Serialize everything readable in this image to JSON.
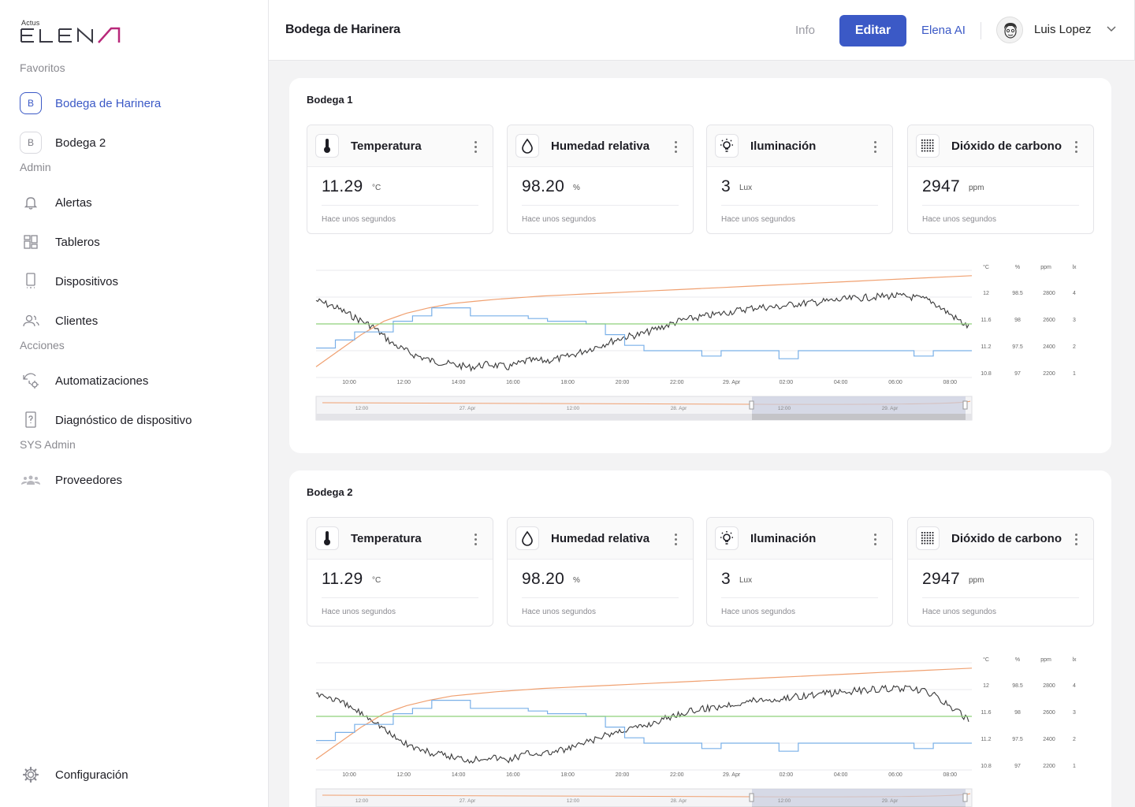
{
  "app": {
    "logo_small": "Actus",
    "logo_text": "ELENA"
  },
  "sidebar": {
    "sections": [
      {
        "label": "Favoritos",
        "items": [
          {
            "label": "Bodega de Harinera",
            "badge": "B",
            "icon": "badge-b"
          },
          {
            "label": "Bodega 2",
            "badge": "B",
            "icon": "badge-b"
          }
        ]
      },
      {
        "label": "Admin",
        "items": [
          {
            "label": "Alertas",
            "icon": "bell-icon"
          },
          {
            "label": "Tableros",
            "icon": "dashboard-icon"
          },
          {
            "label": "Dispositivos",
            "icon": "device-icon"
          },
          {
            "label": "Clientes",
            "icon": "users-icon"
          }
        ]
      },
      {
        "label": "Acciones",
        "items": [
          {
            "label": "Automatizaciones",
            "icon": "automation-icon"
          },
          {
            "label": "Diagnóstico de dispositivo",
            "icon": "diagnostic-icon"
          }
        ]
      },
      {
        "label": "SYS Admin",
        "items": [
          {
            "label": "Proveedores",
            "icon": "providers-icon"
          }
        ]
      }
    ],
    "settings_label": "Configuración"
  },
  "header": {
    "title": "Bodega de Harinera",
    "info": "Info",
    "edit": "Editar",
    "ai": "Elena AI",
    "user": "Luis Lopez"
  },
  "colors": {
    "accent": "#3b59c6",
    "temp_line": "#3a3a3a",
    "humidity_line": "#f0a070",
    "light_line": "#7ab0e8",
    "co2_line": "#8fd17a"
  },
  "panels": [
    {
      "title": "Bodega 1",
      "metrics": [
        {
          "name": "Temperatura",
          "value": "11.29",
          "unit": "°C",
          "time": "Hace unos segundos",
          "icon": "thermometer-icon"
        },
        {
          "name": "Humedad relativa",
          "value": "98.20",
          "unit": "%",
          "time": "Hace unos segundos",
          "icon": "droplet-icon"
        },
        {
          "name": "Iluminación",
          "value": "3",
          "unit": "Lux",
          "time": "Hace unos segundos",
          "icon": "bulb-icon"
        },
        {
          "name": "Dióxido de carbono",
          "value": "2947",
          "unit": "ppm",
          "time": "Hace unos segundos",
          "icon": "co2-grid-icon"
        }
      ]
    },
    {
      "title": "Bodega 2",
      "metrics": [
        {
          "name": "Temperatura",
          "value": "11.29",
          "unit": "°C",
          "time": "Hace unos segundos",
          "icon": "thermometer-icon"
        },
        {
          "name": "Humedad relativa",
          "value": "98.20",
          "unit": "%",
          "time": "Hace unos segundos",
          "icon": "droplet-icon"
        },
        {
          "name": "Iluminación",
          "value": "3",
          "unit": "Lux",
          "time": "Hace unos segundos",
          "icon": "bulb-icon"
        },
        {
          "name": "Dióxido de carbono",
          "value": "2947",
          "unit": "ppm",
          "time": "Hace unos segundos",
          "icon": "co2-grid-icon"
        }
      ]
    }
  ],
  "chart_data": {
    "type": "line",
    "x_ticks": [
      "10:00",
      "12:00",
      "14:00",
      "16:00",
      "18:00",
      "20:00",
      "22:00",
      "29. Apr",
      "02:00",
      "04:00",
      "06:00",
      "08:00"
    ],
    "axes": [
      {
        "unit": "°C",
        "ticks": [
          "12",
          "11.6",
          "11.2",
          "10.8"
        ]
      },
      {
        "unit": "%",
        "ticks": [
          "98.5",
          "98",
          "97.5",
          "97"
        ]
      },
      {
        "unit": "ppm",
        "ticks": [
          "2800",
          "2600",
          "2400",
          "2200"
        ]
      },
      {
        "unit": "lx",
        "ticks": [
          "4",
          "3",
          "2",
          "1"
        ]
      }
    ],
    "navigator_ticks": [
      "12:00",
      "27. Apr",
      "12:00",
      "28. Apr",
      "12:00",
      "29. Apr"
    ],
    "series": [
      {
        "axis": "°C",
        "color": "#3a3a3a",
        "values": [
          11.95,
          11.85,
          11.7,
          11.55,
          11.3,
          11.15,
          11.05,
          11.0,
          10.95,
          11.0,
          10.95,
          11.05,
          11.05,
          11.1,
          11.2,
          11.3,
          11.4,
          11.45,
          11.55,
          11.65,
          11.7,
          11.75,
          11.8,
          11.85,
          11.85,
          11.9,
          11.92,
          11.95,
          11.98,
          12.0,
          12.02,
          12.0,
          11.95,
          11.75,
          11.55
        ]
      },
      {
        "axis": "%",
        "color": "#f0a070",
        "values": [
          97.2,
          97.5,
          97.8,
          98.05,
          98.2,
          98.3,
          98.38,
          98.42,
          98.46,
          98.49,
          98.52,
          98.54,
          98.56,
          98.58,
          98.6,
          98.62,
          98.64,
          98.66,
          98.68,
          98.7,
          98.72,
          98.74,
          98.76,
          98.78,
          98.8,
          98.82,
          98.84,
          98.86,
          98.88,
          98.9
        ]
      },
      {
        "axis": "lx",
        "color": "#7ab0e8",
        "values": [
          2.1,
          2.4,
          2.7,
          2.7,
          3.1,
          3.3,
          3.6,
          3.6,
          3.3,
          3.3,
          3.3,
          3.2,
          3.1,
          3.1,
          3.0,
          2.6,
          2.2,
          2.0,
          2.0,
          2.0,
          1.8,
          2.0,
          2.0,
          2.0,
          1.7,
          2.0,
          2.0,
          2.0,
          2.0,
          2.0,
          2.0,
          1.8,
          2.0,
          2.0,
          2.0
        ]
      },
      {
        "axis": "ppm",
        "color": "#8fd17a",
        "values": [
          2600,
          2600,
          2600,
          2600,
          2600,
          2600,
          2600,
          2600,
          2600,
          2600
        ]
      }
    ]
  }
}
